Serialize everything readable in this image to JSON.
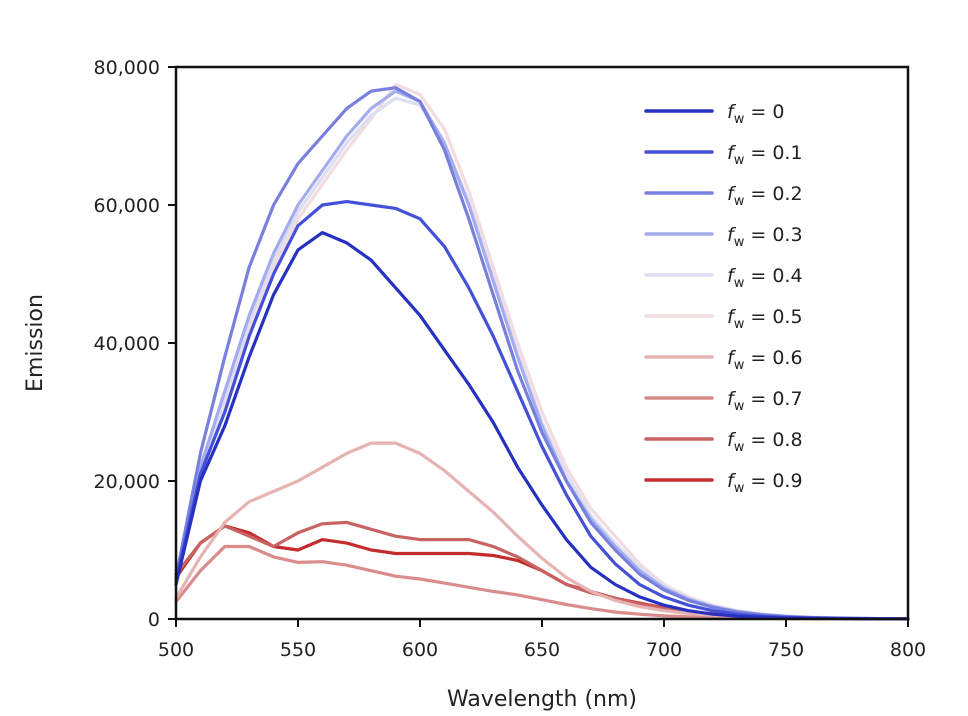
{
  "chart_data": {
    "type": "line",
    "title": "",
    "xlabel": "Wavelength (nm)",
    "ylabel": "Emission",
    "xlim": [
      500,
      800
    ],
    "ylim": [
      0,
      80000
    ],
    "xticks": [
      500,
      550,
      600,
      650,
      700,
      750,
      800
    ],
    "xtick_labels": [
      "500",
      "550",
      "600",
      "650",
      "700",
      "750",
      "800"
    ],
    "yticks": [
      0,
      20000,
      40000,
      60000,
      80000
    ],
    "ytick_labels": [
      "0",
      "20,000",
      "40,000",
      "60,000",
      "80,000"
    ],
    "grid": false,
    "legend_position": "top-right",
    "x": [
      500,
      510,
      520,
      530,
      540,
      550,
      560,
      570,
      580,
      590,
      600,
      610,
      620,
      630,
      640,
      650,
      660,
      670,
      680,
      690,
      700,
      710,
      720,
      730,
      740,
      750,
      760,
      770,
      780,
      790,
      800
    ],
    "series": [
      {
        "name": "f_w = 0",
        "legend_symbol": "f",
        "legend_sub": "w",
        "legend_rest": " = 0",
        "color": "#2731c0",
        "values": [
          5000,
          20000,
          28000,
          38000,
          47000,
          53500,
          56000,
          54500,
          52000,
          48000,
          44000,
          39000,
          34000,
          28500,
          22000,
          16500,
          11500,
          7500,
          5000,
          3200,
          2000,
          1200,
          700,
          400,
          250,
          150,
          100,
          80,
          50,
          30,
          20
        ]
      },
      {
        "name": "f_w = 0.1",
        "legend_symbol": "f",
        "legend_sub": "w",
        "legend_rest": " = 0.1",
        "color": "#4450d8",
        "values": [
          5500,
          21000,
          30000,
          41000,
          50000,
          57000,
          60000,
          60500,
          60000,
          59500,
          58000,
          54000,
          48000,
          41000,
          33000,
          25000,
          18000,
          12000,
          8000,
          5000,
          3200,
          2000,
          1200,
          700,
          400,
          250,
          150,
          100,
          60,
          40,
          20
        ]
      },
      {
        "name": "f_w = 0.2",
        "legend_symbol": "f",
        "legend_sub": "w",
        "legend_rest": " = 0.2",
        "color": "#7880de",
        "values": [
          6000,
          24000,
          38000,
          51000,
          60000,
          66000,
          70000,
          74000,
          76500,
          77000,
          75000,
          68000,
          58000,
          47000,
          36000,
          27000,
          20000,
          14000,
          10000,
          6500,
          4200,
          2700,
          1700,
          1000,
          600,
          350,
          200,
          120,
          80,
          50,
          30
        ]
      },
      {
        "name": "f_w = 0.3",
        "legend_symbol": "f",
        "legend_sub": "w",
        "legend_rest": " = 0.3",
        "color": "#a4acee",
        "values": [
          5800,
          22000,
          33000,
          44000,
          53000,
          60000,
          65000,
          70000,
          74000,
          76500,
          75000,
          69000,
          60000,
          49000,
          38000,
          28000,
          20000,
          14500,
          10500,
          7000,
          4500,
          2900,
          1800,
          1100,
          650,
          380,
          220,
          130,
          80,
          50,
          30
        ]
      },
      {
        "name": "f_w = 0.4",
        "legend_symbol": "f",
        "legend_sub": "w",
        "legend_rest": " = 0.4",
        "color": "#dcdff4",
        "values": [
          5600,
          21000,
          32000,
          43000,
          52000,
          59000,
          64000,
          69000,
          73000,
          75500,
          74500,
          69000,
          60500,
          49500,
          38500,
          28500,
          21000,
          15000,
          11000,
          7500,
          4800,
          3000,
          1900,
          1150,
          700,
          400,
          230,
          140,
          90,
          55,
          30
        ]
      },
      {
        "name": "f_w = 0.5",
        "legend_symbol": "f",
        "legend_sub": "w",
        "legend_rest": " = 0.5",
        "color": "#f2dcdf",
        "values": [
          5400,
          20500,
          31000,
          42000,
          51000,
          58000,
          63000,
          68000,
          72500,
          77500,
          76000,
          71000,
          62000,
          51000,
          40000,
          30000,
          22000,
          16000,
          12000,
          8000,
          5000,
          3200,
          2000,
          1200,
          750,
          450,
          260,
          160,
          100,
          60,
          40
        ]
      },
      {
        "name": "f_w = 0.6",
        "legend_symbol": "f",
        "legend_sub": "w",
        "legend_rest": " = 0.6",
        "color": "#e6b3b3",
        "values": [
          3000,
          9000,
          14000,
          17000,
          18500,
          20000,
          22000,
          24000,
          25500,
          25500,
          24000,
          21500,
          18500,
          15500,
          12000,
          8800,
          6000,
          4000,
          2700,
          1800,
          1200,
          800,
          550,
          380,
          260,
          180,
          120,
          80,
          50,
          30,
          20
        ]
      },
      {
        "name": "f_w = 0.7",
        "legend_symbol": "f",
        "legend_sub": "w",
        "legend_rest": " = 0.7",
        "color": "#da8c8c",
        "values": [
          2500,
          7000,
          10500,
          10500,
          9000,
          8200,
          8300,
          7800,
          7000,
          6200,
          5800,
          5200,
          4600,
          4000,
          3500,
          2800,
          2100,
          1500,
          1000,
          700,
          450,
          300,
          200,
          140,
          100,
          70,
          50,
          30,
          20,
          15,
          10
        ]
      },
      {
        "name": "f_w = 0.8",
        "legend_symbol": "f",
        "legend_sub": "w",
        "legend_rest": " = 0.8",
        "color": "#c96262",
        "values": [
          6500,
          11000,
          13500,
          12000,
          10500,
          12500,
          13800,
          14000,
          13000,
          12000,
          11500,
          11500,
          11500,
          10500,
          9000,
          7000,
          5000,
          3800,
          3000,
          2200,
          1500,
          950,
          600,
          400,
          250,
          160,
          100,
          70,
          50,
          30,
          20
        ]
      },
      {
        "name": "f_w = 0.9",
        "legend_symbol": "f",
        "legend_sub": "w",
        "legend_rest": " = 0.9",
        "color": "#c42b2b",
        "values": [
          6000,
          11000,
          13500,
          12500,
          10500,
          10000,
          11500,
          11000,
          10000,
          9500,
          9500,
          9500,
          9500,
          9200,
          8500,
          7000,
          5000,
          4000,
          3000,
          2300,
          1600,
          1100,
          750,
          500,
          350,
          230,
          150,
          100,
          60,
          40,
          20
        ]
      }
    ]
  }
}
